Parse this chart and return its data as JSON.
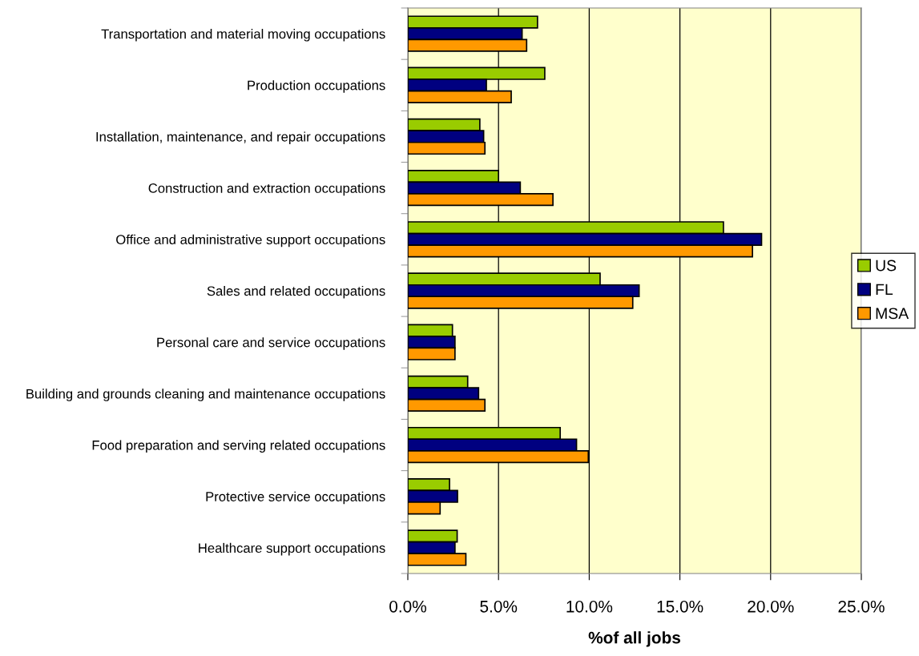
{
  "chart_data": {
    "type": "bar",
    "orientation": "horizontal",
    "xlabel": "%of all jobs",
    "categories": [
      "Transportation and material moving occupations",
      "Production occupations",
      "Installation, maintenance, and repair occupations",
      "Construction and extraction occupations",
      "Office and administrative support occupations",
      "Sales and related occupations",
      "Personal care and service occupations",
      "Building and grounds cleaning and maintenance occupations",
      "Food preparation and serving related occupations",
      "Protective service occupations",
      "Healthcare support occupations"
    ],
    "series": [
      {
        "name": "US",
        "color": "#99cc00",
        "values": [
          7.15,
          7.55,
          3.97,
          5.0,
          17.4,
          10.6,
          2.46,
          3.3,
          8.4,
          2.3,
          2.72
        ]
      },
      {
        "name": "FL",
        "color": "#000080",
        "values": [
          6.3,
          4.33,
          4.18,
          6.2,
          19.5,
          12.75,
          2.6,
          3.9,
          9.3,
          2.74,
          2.6
        ]
      },
      {
        "name": "MSA",
        "color": "#ff9900",
        "values": [
          6.55,
          5.7,
          4.25,
          8.0,
          19.0,
          12.4,
          2.6,
          4.25,
          9.95,
          1.78,
          3.2
        ]
      }
    ],
    "xlim": [
      0,
      25
    ],
    "xticks": [
      {
        "value": 0,
        "label": "0.0%"
      },
      {
        "value": 5,
        "label": "5.0%"
      },
      {
        "value": 10,
        "label": "10.0%"
      },
      {
        "value": 15,
        "label": "15.0%"
      },
      {
        "value": 20,
        "label": "20.0%"
      },
      {
        "value": 25,
        "label": "25.0%"
      }
    ],
    "grid": "x",
    "legend": "right"
  }
}
